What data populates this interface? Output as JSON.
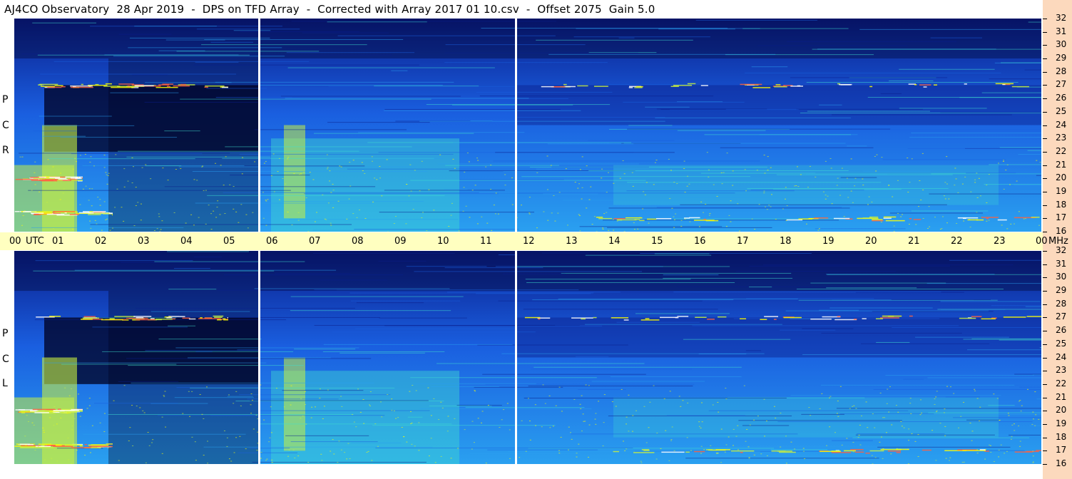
{
  "title": "AJ4CO Observatory  28 Apr 2019  -  DPS on TFD Array  -  Corrected with Array 2017 01 10.csv  -  Offset 2075  Gain 5.0",
  "panels": {
    "rcp": {
      "label_letters": [
        "P",
        "C",
        "R"
      ]
    },
    "lcp": {
      "label_letters": [
        "P",
        "C",
        "L"
      ]
    }
  },
  "utc_axis": {
    "labels": [
      "00",
      "UTC",
      "01",
      "02",
      "03",
      "04",
      "05",
      "06",
      "07",
      "08",
      "09",
      "10",
      "11",
      "12",
      "13",
      "14",
      "15",
      "16",
      "17",
      "18",
      "19",
      "20",
      "21",
      "22",
      "23",
      "00",
      "MHz"
    ]
  },
  "chart_data": [
    {
      "type": "heatmap",
      "panel": "RCP",
      "x_unit": "UTC hour",
      "xlim": [
        0,
        24
      ],
      "y_unit": "MHz",
      "ylim": [
        16,
        32
      ],
      "y_ticks": [
        32,
        31,
        30,
        29,
        28,
        27,
        26,
        25,
        24,
        23,
        22,
        21,
        20,
        19,
        18,
        17,
        16
      ],
      "gaps_utc": [
        5.7,
        11.7
      ],
      "colormap": [
        "#000020",
        "#0a1e8c",
        "#1a5fe0",
        "#2aa0f0",
        "#40e0d0",
        "#c8f040",
        "#ffff00",
        "#ff6040",
        "#ffffff"
      ]
    },
    {
      "type": "heatmap",
      "panel": "LCP",
      "x_unit": "UTC hour",
      "xlim": [
        0,
        24
      ],
      "y_unit": "MHz",
      "ylim": [
        16,
        32
      ],
      "y_ticks": [
        32,
        31,
        30,
        29,
        28,
        27,
        26,
        25,
        24,
        23,
        22,
        21,
        20,
        19,
        18,
        17,
        16
      ],
      "gaps_utc": [
        5.7,
        11.7
      ],
      "colormap": [
        "#000020",
        "#0a1e8c",
        "#1a5fe0",
        "#2aa0f0",
        "#40e0d0",
        "#c8f040",
        "#ffff00",
        "#ff6040",
        "#ffffff"
      ]
    }
  ]
}
